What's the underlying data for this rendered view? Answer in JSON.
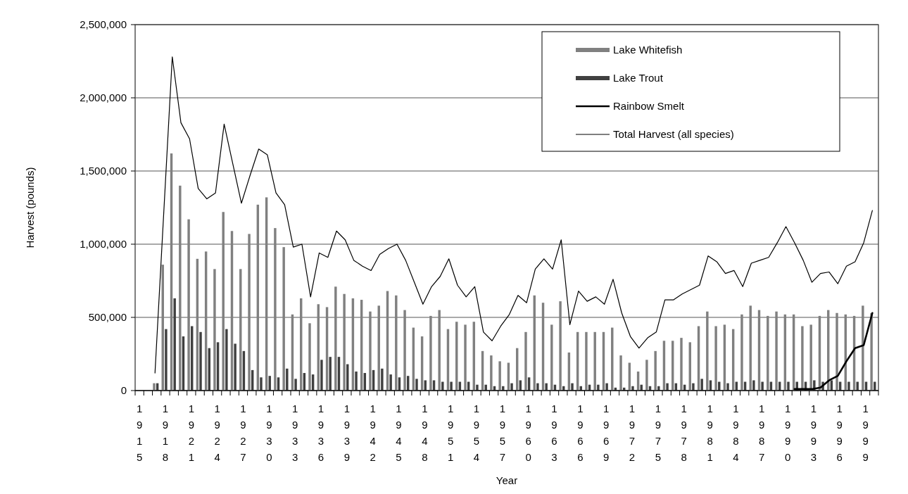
{
  "chart_data": {
    "type": "bar",
    "xlabel": "Year",
    "ylabel": "Harvest (pounds)",
    "categories": [
      "1915",
      null,
      null,
      "1918",
      null,
      null,
      "1921",
      null,
      null,
      "1924",
      null,
      null,
      "1927",
      null,
      null,
      "1930",
      null,
      null,
      "1933",
      null,
      null,
      "1936",
      null,
      null,
      "1939",
      null,
      null,
      "1942",
      null,
      null,
      "1945",
      null,
      null,
      "1948",
      null,
      null,
      "1951",
      null,
      null,
      "1954",
      null,
      null,
      "1957",
      null,
      null,
      "1960",
      null,
      null,
      "1963",
      null,
      null,
      "1966",
      null,
      null,
      "1969",
      null,
      null,
      "1972",
      null,
      null,
      "1975",
      null,
      null,
      "1978",
      null,
      null,
      "1981",
      null,
      null,
      "1984",
      null,
      null,
      "1987",
      null,
      null,
      "1990",
      null,
      null,
      "1993",
      null,
      null,
      "1996",
      null,
      null,
      "1999",
      null
    ],
    "ylim": [
      0,
      2500000
    ],
    "yticks": [
      {
        "value": 0,
        "label": "0"
      },
      {
        "value": 500000,
        "label": "500,000"
      },
      {
        "value": 1000000,
        "label": "1,000,000"
      },
      {
        "value": 1500000,
        "label": "1,500,000"
      },
      {
        "value": 2000000,
        "label": "2,000,000"
      },
      {
        "value": 2500000,
        "label": "2,500,000"
      }
    ],
    "grid": "y",
    "legend": "top right",
    "series": [
      {
        "name": "Lake Whitefish",
        "color": "#808080",
        "values": [
          null,
          null,
          50000,
          860000,
          1620000,
          1400000,
          1170000,
          900000,
          950000,
          830000,
          1220000,
          1090000,
          830000,
          1070000,
          1270000,
          1320000,
          1110000,
          980000,
          520000,
          630000,
          460000,
          590000,
          570000,
          710000,
          660000,
          630000,
          620000,
          540000,
          580000,
          680000,
          650000,
          550000,
          430000,
          370000,
          510000,
          550000,
          420000,
          470000,
          450000,
          470000,
          270000,
          240000,
          200000,
          190000,
          290000,
          400000,
          650000,
          600000,
          450000,
          610000,
          260000,
          400000,
          400000,
          400000,
          400000,
          430000,
          240000,
          190000,
          130000,
          210000,
          270000,
          340000,
          340000,
          360000,
          330000,
          440000,
          540000,
          440000,
          450000,
          420000,
          520000,
          580000,
          550000,
          510000,
          540000,
          520000,
          520000,
          440000,
          450000,
          510000,
          550000,
          530000,
          520000,
          510000,
          580000,
          530000
        ]
      },
      {
        "name": "Lake Trout",
        "color": "#404040",
        "values": [
          null,
          null,
          50000,
          420000,
          630000,
          370000,
          440000,
          400000,
          290000,
          330000,
          420000,
          320000,
          270000,
          140000,
          90000,
          100000,
          90000,
          150000,
          80000,
          120000,
          110000,
          210000,
          230000,
          230000,
          180000,
          130000,
          120000,
          140000,
          150000,
          110000,
          90000,
          100000,
          80000,
          70000,
          70000,
          60000,
          60000,
          60000,
          60000,
          40000,
          40000,
          30000,
          30000,
          50000,
          70000,
          90000,
          50000,
          50000,
          40000,
          30000,
          50000,
          30000,
          40000,
          40000,
          50000,
          20000,
          20000,
          30000,
          40000,
          30000,
          30000,
          50000,
          50000,
          40000,
          50000,
          80000,
          70000,
          60000,
          50000,
          60000,
          60000,
          70000,
          60000,
          60000,
          60000,
          60000,
          60000,
          60000,
          70000,
          60000,
          70000,
          60000,
          60000,
          60000,
          60000,
          60000
        ]
      },
      {
        "name": "Rainbow Smelt",
        "type": "line",
        "color": "#000000",
        "values": [
          null,
          null,
          null,
          null,
          null,
          null,
          null,
          null,
          null,
          null,
          null,
          null,
          null,
          null,
          null,
          null,
          null,
          null,
          null,
          null,
          null,
          null,
          null,
          null,
          null,
          null,
          null,
          null,
          null,
          null,
          null,
          null,
          null,
          null,
          null,
          null,
          null,
          null,
          null,
          null,
          null,
          null,
          null,
          null,
          null,
          null,
          null,
          null,
          null,
          null,
          null,
          null,
          null,
          null,
          null,
          null,
          null,
          null,
          null,
          null,
          null,
          null,
          null,
          null,
          null,
          null,
          null,
          null,
          null,
          null,
          null,
          null,
          null,
          null,
          null,
          null,
          10000,
          10000,
          10000,
          20000,
          70000,
          100000,
          200000,
          290000,
          310000,
          530000
        ]
      },
      {
        "name": "Total Harvest (all species)",
        "type": "line",
        "color": "#000000",
        "values": [
          null,
          null,
          120000,
          1200000,
          2280000,
          1830000,
          1720000,
          1380000,
          1310000,
          1350000,
          1820000,
          1550000,
          1280000,
          1470000,
          1650000,
          1610000,
          1350000,
          1270000,
          980000,
          1000000,
          640000,
          940000,
          910000,
          1090000,
          1030000,
          890000,
          850000,
          820000,
          930000,
          970000,
          1000000,
          890000,
          740000,
          590000,
          710000,
          780000,
          900000,
          720000,
          640000,
          710000,
          400000,
          340000,
          440000,
          520000,
          650000,
          600000,
          830000,
          900000,
          830000,
          1030000,
          450000,
          680000,
          610000,
          640000,
          590000,
          760000,
          530000,
          370000,
          290000,
          360000,
          400000,
          620000,
          620000,
          660000,
          690000,
          720000,
          920000,
          880000,
          800000,
          820000,
          710000,
          870000,
          890000,
          910000,
          1010000,
          1120000,
          1010000,
          890000,
          740000,
          800000,
          810000,
          730000,
          850000,
          880000,
          1010000,
          1230000
        ]
      }
    ]
  }
}
